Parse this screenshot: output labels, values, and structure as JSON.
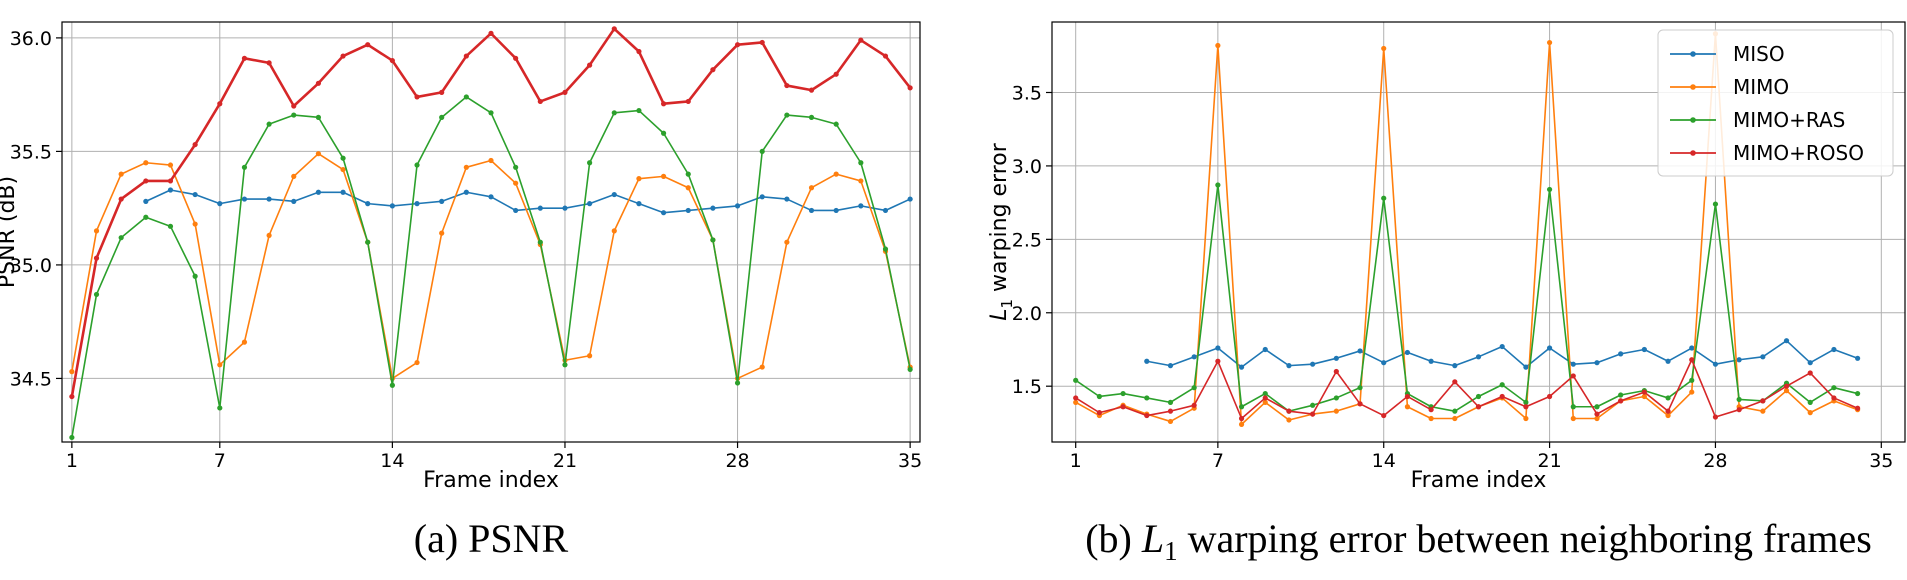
{
  "chart_data": [
    {
      "type": "line",
      "caption": "(a) PSNR",
      "xlabel": "Frame index",
      "ylabel": "PSNR (dB)",
      "xlim": [
        0.6,
        35.4
      ],
      "ylim": [
        34.22,
        36.07
      ],
      "xticks": [
        1,
        7,
        14,
        21,
        28,
        35
      ],
      "yticks": [
        34.5,
        35.0,
        35.5,
        36.0
      ],
      "ytick_labels": [
        "34.5",
        "35.0",
        "35.5",
        "36.0"
      ],
      "grid": true,
      "series": [
        {
          "name": "MISO",
          "color": "#1f77b4",
          "x_start": 4,
          "values": [
            35.28,
            35.33,
            35.31,
            35.27,
            35.29,
            35.29,
            35.28,
            35.32,
            35.32,
            35.27,
            35.26,
            35.27,
            35.28,
            35.32,
            35.3,
            35.24,
            35.25,
            35.25,
            35.27,
            35.31,
            35.27,
            35.23,
            35.24,
            35.25,
            35.26,
            35.3,
            35.29,
            35.24,
            35.24,
            35.26,
            35.24,
            35.29
          ]
        },
        {
          "name": "MIMO",
          "color": "#ff7f0e",
          "x_start": 1,
          "values": [
            34.53,
            35.15,
            35.4,
            35.45,
            35.44,
            35.18,
            34.56,
            34.66,
            35.13,
            35.39,
            35.49,
            35.42,
            35.1,
            34.5,
            34.57,
            35.14,
            35.43,
            35.46,
            35.36,
            35.09,
            34.58,
            34.6,
            35.15,
            35.38,
            35.39,
            35.34,
            35.11,
            34.5,
            34.55,
            35.1,
            35.34,
            35.4,
            35.37,
            35.06,
            34.55
          ]
        },
        {
          "name": "MIMO+RAS",
          "color": "#2ca02c",
          "x_start": 1,
          "values": [
            34.24,
            34.87,
            35.12,
            35.21,
            35.17,
            34.95,
            34.37,
            35.43,
            35.62,
            35.66,
            35.65,
            35.47,
            35.1,
            34.47,
            35.44,
            35.65,
            35.74,
            35.67,
            35.43,
            35.1,
            34.56,
            35.45,
            35.67,
            35.68,
            35.58,
            35.4,
            35.11,
            34.48,
            35.5,
            35.66,
            35.65,
            35.62,
            35.45,
            35.07,
            34.54
          ]
        },
        {
          "name": "MIMO+ROSO",
          "color": "#d62728",
          "x_start": 1,
          "values": [
            34.42,
            35.03,
            35.29,
            35.37,
            35.37,
            35.53,
            35.71,
            35.91,
            35.89,
            35.7,
            35.8,
            35.92,
            35.97,
            35.9,
            35.74,
            35.76,
            35.92,
            36.02,
            35.91,
            35.72,
            35.76,
            35.88,
            36.04,
            35.94,
            35.71,
            35.72,
            35.86,
            35.97,
            35.98,
            35.79,
            35.77,
            35.84,
            35.99,
            35.92,
            35.78
          ]
        }
      ]
    },
    {
      "type": "line",
      "caption_prefix": "(b) ",
      "caption_math": "L",
      "caption_sub": "1",
      "caption_rest": " warping error between neighboring frames",
      "xlabel": "Frame index",
      "ylabel_math": "L",
      "ylabel_sub": "1",
      "ylabel_rest": " warping error",
      "xlim": [
        0,
        36
      ],
      "ylim": [
        1.12,
        3.98
      ],
      "xticks": [
        1,
        7,
        14,
        21,
        28,
        35
      ],
      "yticks": [
        1.5,
        2.0,
        2.5,
        3.0,
        3.5
      ],
      "ytick_labels": [
        "1.5",
        "2.0",
        "2.5",
        "3.0",
        "3.5"
      ],
      "grid": true,
      "legend": "top-right",
      "series": [
        {
          "name": "MISO",
          "color": "#1f77b4",
          "x_start": 4,
          "values": [
            1.67,
            1.64,
            1.7,
            1.76,
            1.63,
            1.75,
            1.64,
            1.65,
            1.69,
            1.74,
            1.66,
            1.73,
            1.67,
            1.64,
            1.7,
            1.77,
            1.63,
            1.76,
            1.65,
            1.66,
            1.72,
            1.75,
            1.67,
            1.76,
            1.65,
            1.68,
            1.7,
            1.81,
            1.66,
            1.75,
            1.69
          ]
        },
        {
          "name": "MIMO",
          "color": "#ff7f0e",
          "x_start": 1,
          "values": [
            1.39,
            1.3,
            1.37,
            1.31,
            1.26,
            1.35,
            3.82,
            1.24,
            1.39,
            1.27,
            1.31,
            1.33,
            1.38,
            3.8,
            1.36,
            1.28,
            1.28,
            1.36,
            1.42,
            1.28,
            3.84,
            1.28,
            1.28,
            1.4,
            1.43,
            1.3,
            1.46,
            3.9,
            1.36,
            1.33,
            1.47,
            1.32,
            1.4,
            1.34
          ]
        },
        {
          "name": "MIMO+RAS",
          "color": "#2ca02c",
          "x_start": 1,
          "values": [
            1.54,
            1.43,
            1.45,
            1.42,
            1.39,
            1.49,
            2.87,
            1.36,
            1.45,
            1.33,
            1.37,
            1.42,
            1.49,
            2.78,
            1.45,
            1.36,
            1.33,
            1.43,
            1.51,
            1.39,
            2.84,
            1.36,
            1.36,
            1.44,
            1.47,
            1.42,
            1.54,
            2.74,
            1.41,
            1.4,
            1.52,
            1.39,
            1.49,
            1.45
          ]
        },
        {
          "name": "MIMO+ROSO",
          "color": "#d62728",
          "x_start": 1,
          "values": [
            1.42,
            1.32,
            1.36,
            1.3,
            1.33,
            1.37,
            1.67,
            1.28,
            1.42,
            1.33,
            1.31,
            1.6,
            1.38,
            1.3,
            1.43,
            1.34,
            1.53,
            1.36,
            1.43,
            1.36,
            1.43,
            1.57,
            1.31,
            1.4,
            1.46,
            1.33,
            1.68,
            1.29,
            1.34,
            1.4,
            1.5,
            1.59,
            1.42,
            1.35
          ]
        }
      ]
    }
  ]
}
